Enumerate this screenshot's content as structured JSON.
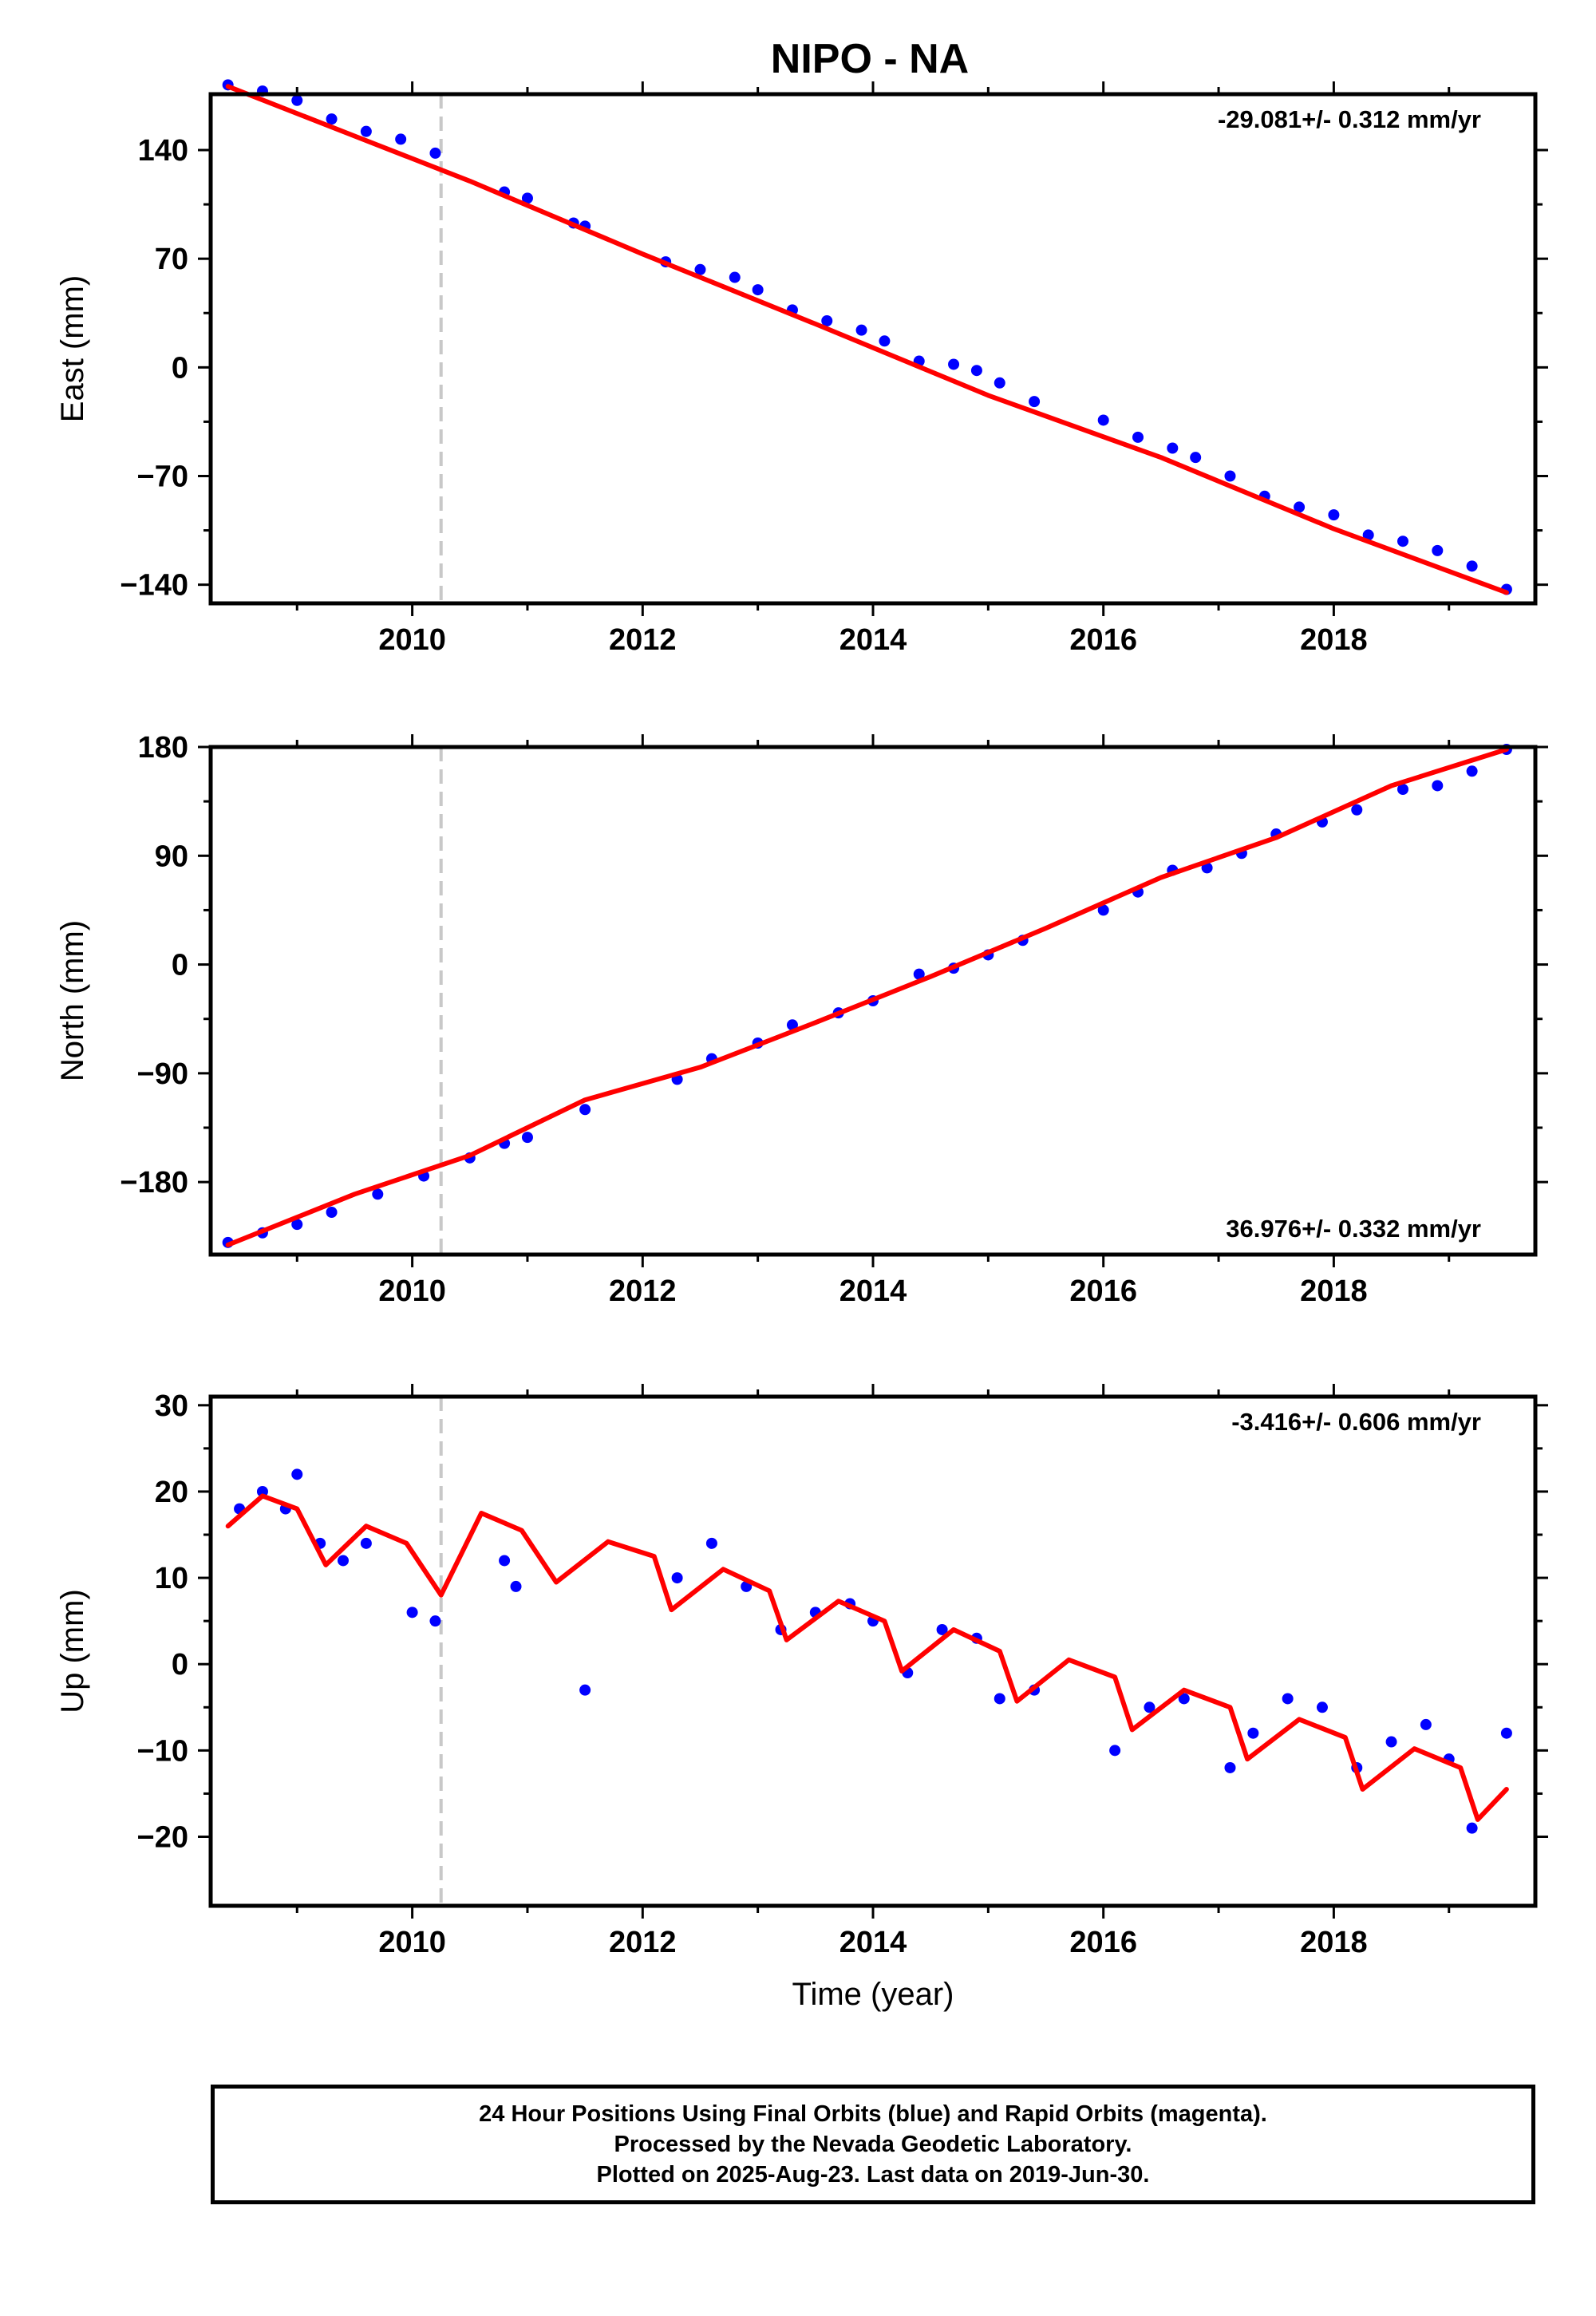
{
  "title": "NIPO - NA",
  "chart_data": [
    {
      "type": "scatter",
      "ylabel": "East (mm)",
      "xlabel": "",
      "xlim": [
        2008.25,
        2019.75
      ],
      "ylim": [
        -152,
        176
      ],
      "yticks": [
        -140,
        -70,
        0,
        70,
        140
      ],
      "xticks": [
        2010,
        2012,
        2014,
        2016,
        2018
      ],
      "rate_label": "-29.081+/- 0.312 mm/yr",
      "rate_position": "top-right",
      "equipment_change": 2010.25,
      "trend": {
        "x": [
          2008.4,
          2009.5,
          2010.5,
          2012.0,
          2013.5,
          2015.0,
          2016.5,
          2018.0,
          2019.5
        ],
        "y": [
          181,
          149,
          120,
          73,
          28,
          -18,
          -58,
          -104,
          -145
        ]
      },
      "series": [
        {
          "values_x": [
            2008.4,
            2008.7,
            2009.0,
            2009.3,
            2009.6,
            2009.9,
            2010.2,
            2010.8,
            2011.0,
            2011.4,
            2011.5,
            2012.2,
            2012.5,
            2012.8,
            2013.0,
            2013.3,
            2013.6,
            2013.9,
            2014.1,
            2014.4,
            2014.7,
            2014.9,
            2015.1,
            2015.4,
            2016.0,
            2016.3,
            2016.6,
            2016.8,
            2017.1,
            2017.4,
            2017.7,
            2018.0,
            2018.3,
            2018.6,
            2018.9,
            2019.2,
            2019.5
          ],
          "values_y": [
            182,
            178,
            172,
            160,
            152,
            147,
            138,
            113,
            109,
            93,
            91,
            68,
            63,
            58,
            50,
            37,
            30,
            24,
            17,
            4,
            2,
            -2,
            -10,
            -22,
            -34,
            -45,
            -52,
            -58,
            -70,
            -83,
            -90,
            -95,
            -108,
            -112,
            -118,
            -128,
            -143
          ]
        }
      ]
    },
    {
      "type": "scatter",
      "ylabel": "North (mm)",
      "xlabel": "",
      "xlim": [
        2008.25,
        2019.75
      ],
      "ylim": [
        -240,
        180
      ],
      "yticks": [
        -180,
        -90,
        0,
        90,
        180
      ],
      "xticks": [
        2010,
        2012,
        2014,
        2016,
        2018
      ],
      "rate_label": "36.976+/- 0.332 mm/yr",
      "rate_position": "bottom-right",
      "equipment_change": 2010.25,
      "trend": {
        "x": [
          2008.4,
          2009.5,
          2010.5,
          2011.5,
          2012.5,
          2013.5,
          2014.5,
          2015.5,
          2016.5,
          2017.5,
          2018.5,
          2019.5
        ],
        "y": [
          -232,
          -190,
          -158,
          -112,
          -85,
          -48,
          -10,
          30,
          72,
          105,
          148,
          178
        ]
      },
      "series": [
        {
          "values_x": [
            2008.4,
            2008.7,
            2009.0,
            2009.3,
            2009.7,
            2010.1,
            2010.5,
            2010.8,
            2011.0,
            2011.5,
            2012.3,
            2012.6,
            2013.0,
            2013.3,
            2013.7,
            2014.0,
            2014.4,
            2014.7,
            2015.0,
            2015.3,
            2016.0,
            2016.3,
            2016.6,
            2016.9,
            2017.2,
            2017.5,
            2017.9,
            2018.2,
            2018.6,
            2018.9,
            2019.2,
            2019.5
          ],
          "values_y": [
            -230,
            -222,
            -215,
            -205,
            -190,
            -175,
            -160,
            -148,
            -143,
            -120,
            -95,
            -78,
            -65,
            -50,
            -40,
            -30,
            -8,
            -3,
            8,
            20,
            45,
            60,
            78,
            80,
            92,
            108,
            118,
            128,
            145,
            148,
            160,
            178
          ]
        }
      ]
    },
    {
      "type": "scatter",
      "ylabel": "Up (mm)",
      "xlabel": "Time (year)",
      "xlim": [
        2008.25,
        2019.75
      ],
      "ylim": [
        -28,
        31
      ],
      "yticks": [
        -20,
        -10,
        0,
        10,
        20,
        30
      ],
      "xticks": [
        2010,
        2012,
        2014,
        2016,
        2018
      ],
      "rate_label": "-3.416+/- 0.606 mm/yr",
      "rate_position": "top-right",
      "equipment_change": 2010.25,
      "trend": {
        "x": [
          2008.4,
          2008.7,
          2009.0,
          2009.25,
          2009.6,
          2009.95,
          2010.25,
          2010.6,
          2010.95,
          2011.25,
          2011.7,
          2012.1,
          2012.25,
          2012.7,
          2013.1,
          2013.25,
          2013.7,
          2014.1,
          2014.25,
          2014.7,
          2015.1,
          2015.25,
          2015.7,
          2016.1,
          2016.25,
          2016.7,
          2017.1,
          2017.25,
          2017.7,
          2018.1,
          2018.25,
          2018.7,
          2019.1,
          2019.25,
          2019.5
        ],
        "y": [
          16,
          19.5,
          18,
          11.5,
          16,
          14,
          8,
          17.5,
          15.5,
          9.5,
          14.2,
          12.5,
          6.3,
          11,
          8.5,
          2.8,
          7.3,
          5,
          -0.8,
          4,
          1.5,
          -4.3,
          0.5,
          -1.5,
          -7.6,
          -3,
          -5,
          -11,
          -6.4,
          -8.5,
          -14.5,
          -9.8,
          -12,
          -18,
          -14.5
        ]
      },
      "series": [
        {
          "values_x": [
            2008.5,
            2008.7,
            2008.9,
            2009.0,
            2009.2,
            2009.4,
            2009.6,
            2010.0,
            2010.2,
            2010.8,
            2010.9,
            2011.5,
            2012.3,
            2012.6,
            2012.9,
            2013.2,
            2013.5,
            2013.8,
            2014.0,
            2014.3,
            2014.6,
            2014.9,
            2015.1,
            2015.4,
            2016.1,
            2016.4,
            2016.7,
            2017.1,
            2017.3,
            2017.6,
            2017.9,
            2018.2,
            2018.5,
            2018.8,
            2019.0,
            2019.2,
            2019.5
          ],
          "values_y": [
            18,
            20,
            18,
            22,
            14,
            12,
            14,
            6,
            5,
            12,
            9,
            -3,
            10,
            14,
            9,
            4,
            6,
            7,
            5,
            -1,
            4,
            3,
            -4,
            -3,
            -10,
            -5,
            -4,
            -12,
            -8,
            -4,
            -5,
            -12,
            -9,
            -7,
            -11,
            -19,
            -8
          ]
        }
      ]
    }
  ],
  "footer": {
    "line1": "24 Hour Positions Using Final Orbits (blue) and Rapid Orbits (magenta).",
    "line2": "Processed by the Nevada Geodetic Laboratory.",
    "line3": "Plotted on 2025-Aug-23. Last data on 2019-Jun-30."
  },
  "colors": {
    "points": "#0000ff",
    "trend": "#ff0000",
    "equipment_line": "#c8c8c8",
    "axis": "#000000"
  }
}
